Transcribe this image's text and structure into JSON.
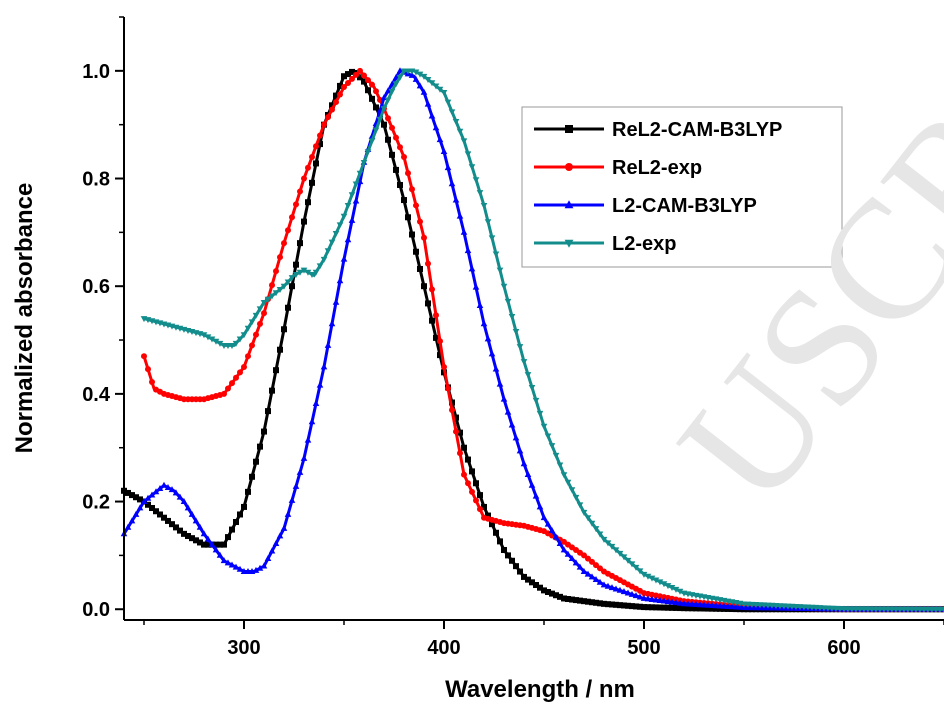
{
  "watermark_text": "USCR",
  "chart_data": {
    "type": "line",
    "title": "",
    "xlabel": "Wavelength / nm",
    "ylabel": "Normalized absorbance",
    "xlim": [
      240,
      650
    ],
    "ylim": [
      -0.02,
      1.1
    ],
    "xticks": [
      300,
      400,
      500,
      600
    ],
    "yticks": [
      0.0,
      0.2,
      0.4,
      0.6,
      0.8,
      1.0
    ],
    "grid": false,
    "legend_position": "top-right",
    "series": [
      {
        "name": "ReL2-CAM-B3LYP",
        "color": "#000000",
        "marker": "square",
        "x": [
          240,
          250,
          260,
          270,
          280,
          290,
          300,
          310,
          320,
          330,
          340,
          350,
          355,
          360,
          370,
          380,
          390,
          400,
          410,
          420,
          430,
          440,
          450,
          460,
          480,
          500,
          520,
          550,
          600,
          650
        ],
        "y": [
          0.22,
          0.2,
          0.17,
          0.14,
          0.12,
          0.12,
          0.19,
          0.33,
          0.52,
          0.72,
          0.9,
          0.99,
          1.0,
          0.98,
          0.9,
          0.76,
          0.6,
          0.44,
          0.3,
          0.19,
          0.11,
          0.06,
          0.035,
          0.02,
          0.01,
          0.004,
          0.002,
          0.0,
          0.0,
          0.0
        ]
      },
      {
        "name": "ReL2-exp",
        "color": "#ff0000",
        "marker": "circle",
        "x": [
          250,
          255,
          260,
          270,
          280,
          290,
          300,
          310,
          320,
          330,
          340,
          350,
          358,
          365,
          370,
          380,
          390,
          400,
          410,
          420,
          430,
          440,
          450,
          460,
          470,
          480,
          500,
          520,
          550,
          600,
          650
        ],
        "y": [
          0.47,
          0.41,
          0.4,
          0.39,
          0.39,
          0.4,
          0.45,
          0.55,
          0.68,
          0.8,
          0.9,
          0.97,
          1.0,
          0.97,
          0.93,
          0.84,
          0.69,
          0.45,
          0.25,
          0.17,
          0.16,
          0.155,
          0.145,
          0.125,
          0.1,
          0.07,
          0.03,
          0.015,
          0.005,
          0.0,
          0.0
        ]
      },
      {
        "name": "L2-CAM-B3LYP",
        "color": "#0000ff",
        "marker": "triangle-up",
        "x": [
          240,
          250,
          260,
          265,
          270,
          280,
          290,
          300,
          305,
          310,
          320,
          330,
          340,
          350,
          360,
          370,
          378,
          385,
          390,
          400,
          410,
          420,
          430,
          440,
          450,
          460,
          470,
          480,
          500,
          520,
          550,
          600,
          650
        ],
        "y": [
          0.14,
          0.2,
          0.23,
          0.22,
          0.2,
          0.14,
          0.09,
          0.07,
          0.07,
          0.08,
          0.15,
          0.28,
          0.45,
          0.65,
          0.83,
          0.95,
          1.0,
          0.99,
          0.96,
          0.85,
          0.7,
          0.53,
          0.39,
          0.27,
          0.17,
          0.11,
          0.07,
          0.045,
          0.02,
          0.01,
          0.003,
          0.0,
          0.0
        ]
      },
      {
        "name": "L2-exp",
        "color": "#138c8c",
        "marker": "triangle-down",
        "x": [
          250,
          260,
          270,
          280,
          285,
          290,
          295,
          300,
          310,
          320,
          325,
          330,
          335,
          340,
          350,
          360,
          370,
          375,
          380,
          385,
          390,
          400,
          410,
          420,
          430,
          440,
          450,
          460,
          470,
          480,
          500,
          520,
          550,
          600,
          650
        ],
        "y": [
          0.54,
          0.53,
          0.52,
          0.51,
          0.5,
          0.49,
          0.49,
          0.51,
          0.57,
          0.6,
          0.62,
          0.63,
          0.62,
          0.65,
          0.73,
          0.83,
          0.93,
          0.97,
          1.0,
          1.0,
          0.99,
          0.96,
          0.87,
          0.75,
          0.6,
          0.46,
          0.34,
          0.25,
          0.18,
          0.13,
          0.065,
          0.03,
          0.01,
          0.001,
          0.0
        ]
      }
    ]
  }
}
